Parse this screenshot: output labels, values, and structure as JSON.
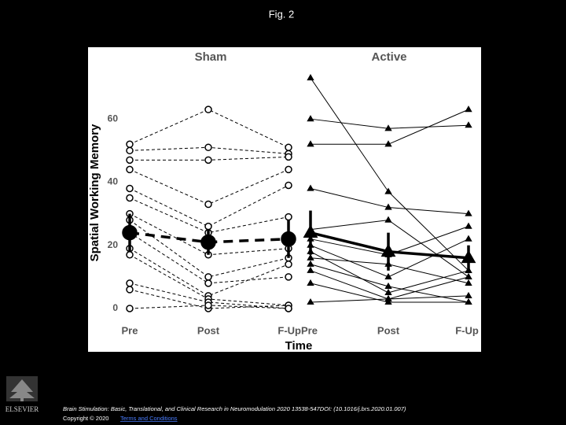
{
  "title": "Fig. 2",
  "chart_data": [
    {
      "type": "line",
      "title": "Sham",
      "ylabel": "Spatial Working Memory",
      "xlabel": "Time",
      "categories": [
        "Pre",
        "Post",
        "F-Up"
      ],
      "ylim": [
        -2,
        74
      ],
      "yticks": [
        0,
        20,
        40,
        60
      ],
      "marker": "circle",
      "line_style": "dashed",
      "color": "#000000",
      "series": [
        {
          "values": [
            52,
            63,
            51
          ]
        },
        {
          "values": [
            50,
            51,
            49
          ]
        },
        {
          "values": [
            47,
            47,
            48
          ]
        },
        {
          "values": [
            44,
            33,
            44
          ]
        },
        {
          "values": [
            38,
            26,
            39
          ]
        },
        {
          "values": [
            35,
            24,
            29
          ]
        },
        {
          "values": [
            30,
            17,
            19
          ]
        },
        {
          "values": [
            28,
            10,
            16
          ]
        },
        {
          "values": [
            24,
            8,
            10
          ]
        },
        {
          "values": [
            19,
            4,
            14
          ]
        },
        {
          "values": [
            17,
            3,
            1
          ]
        },
        {
          "values": [
            8,
            2,
            0
          ]
        },
        {
          "values": [
            6,
            0,
            1
          ]
        },
        {
          "values": [
            0,
            1,
            0
          ]
        }
      ],
      "mean": {
        "values": [
          24,
          21,
          22
        ],
        "errors": [
          6,
          4,
          6
        ]
      }
    },
    {
      "type": "line",
      "title": "Active",
      "categories": [
        "Pre",
        "Post",
        "F-Up"
      ],
      "ylim": [
        -2,
        74
      ],
      "marker": "triangle",
      "line_style": "solid",
      "color": "#000000",
      "series": [
        {
          "values": [
            73,
            37,
            12
          ]
        },
        {
          "values": [
            60,
            57,
            58
          ]
        },
        {
          "values": [
            52,
            52,
            63
          ]
        },
        {
          "values": [
            38,
            32,
            30
          ]
        },
        {
          "values": [
            25,
            28,
            10
          ]
        },
        {
          "values": [
            22,
            17,
            26
          ]
        },
        {
          "values": [
            20,
            10,
            22
          ]
        },
        {
          "values": [
            18,
            5,
            12
          ]
        },
        {
          "values": [
            16,
            14,
            8
          ]
        },
        {
          "values": [
            14,
            7,
            2
          ]
        },
        {
          "values": [
            12,
            3,
            4
          ]
        },
        {
          "values": [
            8,
            2,
            2
          ]
        },
        {
          "values": [
            2,
            3,
            10
          ]
        }
      ],
      "mean": {
        "values": [
          24,
          18,
          16
        ],
        "errors": [
          7,
          6,
          4
        ]
      }
    }
  ],
  "footer": {
    "publisher": "ELSEVIER",
    "citation": "Brain Stimulation: Basic, Translational, and Clinical Research in Neuromodulation 2020 13538-547DOI: (10.1016/j.brs.2020.01.007)",
    "copyright": "Copyright © 2020",
    "link": "Terms and Conditions"
  }
}
